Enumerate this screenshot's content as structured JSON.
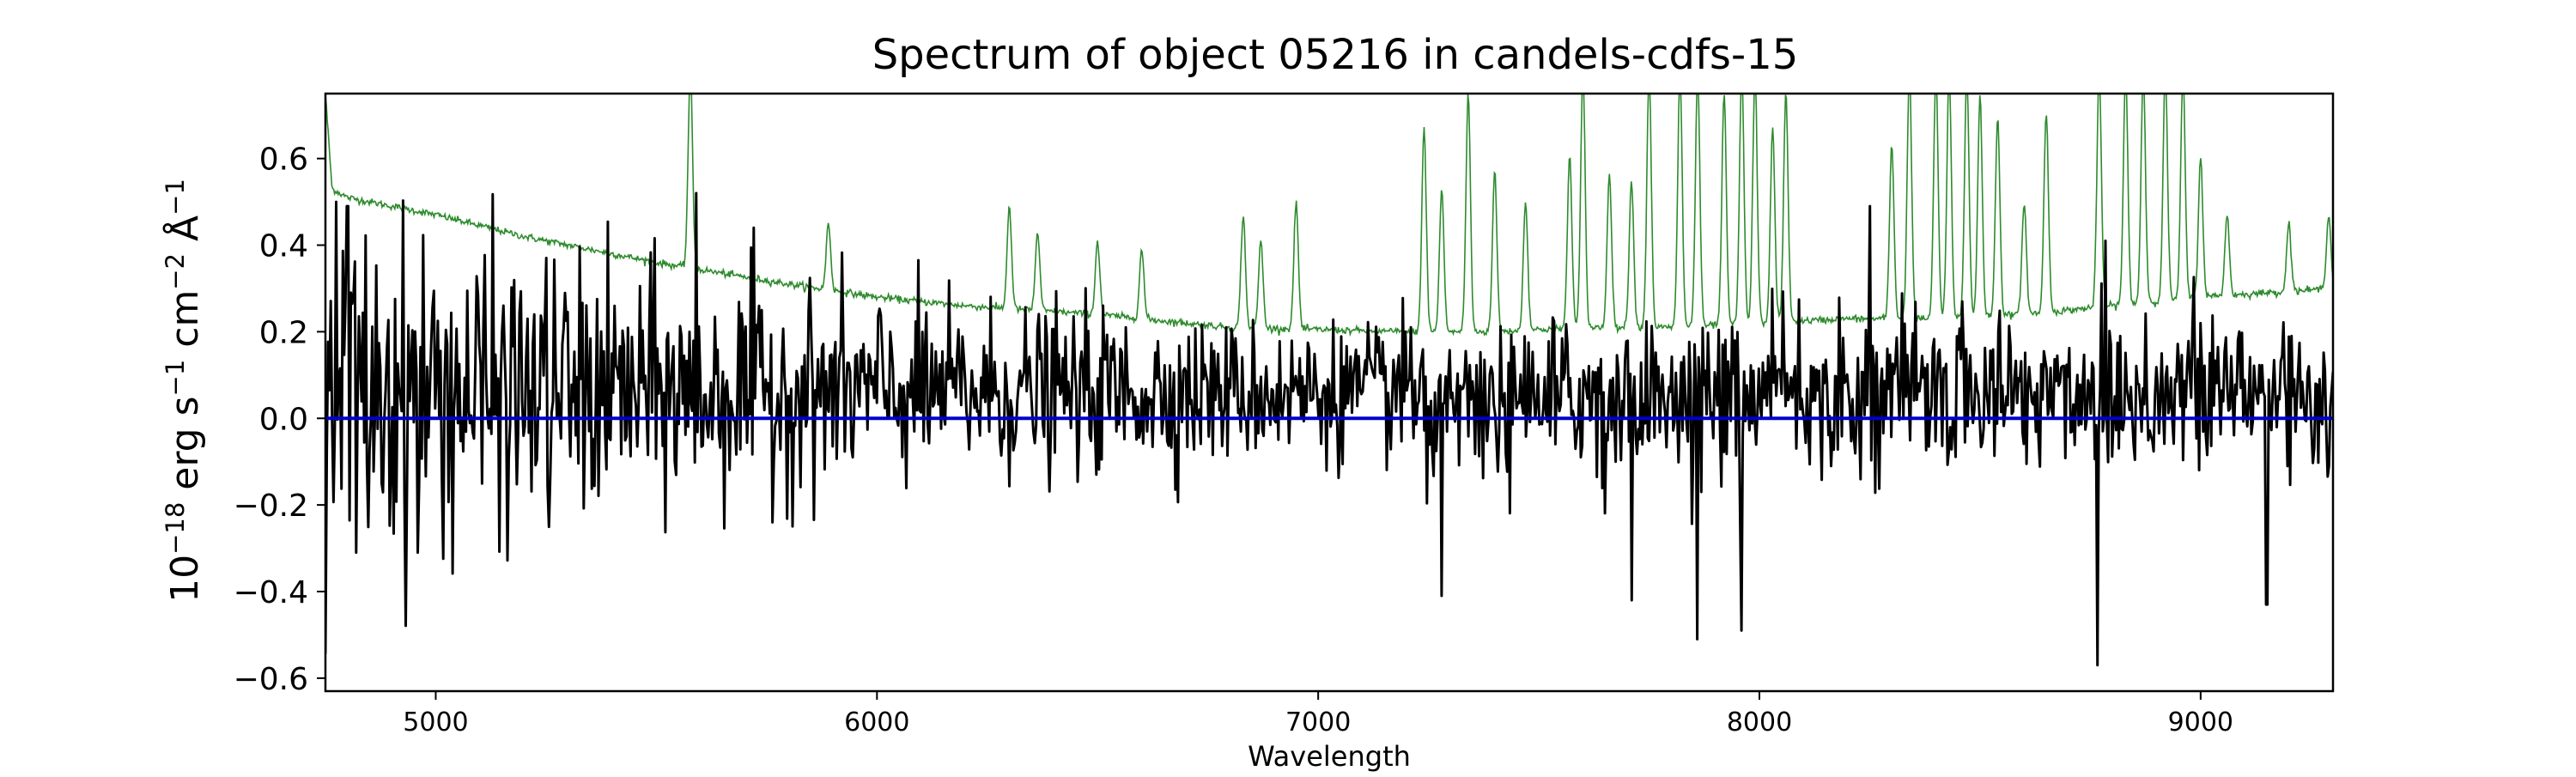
{
  "chart_data": {
    "type": "line",
    "title": "Spectrum of object 05216 in candels-cdfs-15",
    "xlabel": "Wavelength",
    "ylabel": {
      "prefix": "10",
      "exp1": "−18",
      "mid1": " erg s",
      "exp2": "−1",
      "mid2": " cm",
      "exp3": "−2",
      "mid3": " Å",
      "exp4": "−1"
    },
    "xlim": [
      4750,
      9300
    ],
    "ylim": [
      -0.63,
      0.75
    ],
    "xticks": [
      5000,
      6000,
      7000,
      8000,
      9000
    ],
    "xtick_labels": [
      "5000",
      "6000",
      "7000",
      "8000",
      "9000"
    ],
    "yticks": [
      -0.6,
      -0.4,
      -0.2,
      0.0,
      0.2,
      0.4,
      0.6
    ],
    "ytick_labels": [
      "−0.6",
      "−0.4",
      "−0.2",
      "0.0",
      "0.2",
      "0.4",
      "0.6"
    ],
    "grid": false,
    "series": [
      {
        "role": "error",
        "color": "#2e8b2e",
        "continuum": [
          [
            4750,
            0.75
          ],
          [
            4765,
            0.53
          ],
          [
            4800,
            0.51
          ],
          [
            5000,
            0.47
          ],
          [
            5200,
            0.42
          ],
          [
            5500,
            0.36
          ],
          [
            5800,
            0.31
          ],
          [
            6000,
            0.28
          ],
          [
            6200,
            0.26
          ],
          [
            6500,
            0.24
          ],
          [
            6800,
            0.21
          ],
          [
            7000,
            0.205
          ],
          [
            7200,
            0.2
          ],
          [
            7400,
            0.2
          ],
          [
            7600,
            0.21
          ],
          [
            7800,
            0.21
          ],
          [
            8000,
            0.22
          ],
          [
            8200,
            0.23
          ],
          [
            8400,
            0.23
          ],
          [
            8600,
            0.24
          ],
          [
            8800,
            0.26
          ],
          [
            9000,
            0.28
          ],
          [
            9300,
            0.3
          ]
        ],
        "peaks": [
          [
            5577,
            0.75
          ],
          [
            5890,
            0.4
          ],
          [
            6300,
            0.44
          ],
          [
            6364,
            0.38
          ],
          [
            6500,
            0.36
          ],
          [
            6600,
            0.34
          ],
          [
            6830,
            0.42
          ],
          [
            6870,
            0.36
          ],
          [
            6950,
            0.45
          ],
          [
            7240,
            0.62
          ],
          [
            7280,
            0.48
          ],
          [
            7340,
            0.7
          ],
          [
            7400,
            0.52
          ],
          [
            7470,
            0.45
          ],
          [
            7570,
            0.56
          ],
          [
            7600,
            0.75
          ],
          [
            7660,
            0.52
          ],
          [
            7710,
            0.5
          ],
          [
            7750,
            0.75
          ],
          [
            7820,
            0.75
          ],
          [
            7860,
            0.75
          ],
          [
            7920,
            0.7
          ],
          [
            7960,
            0.75
          ],
          [
            7990,
            0.75
          ],
          [
            8030,
            0.62
          ],
          [
            8060,
            0.7
          ],
          [
            8300,
            0.58
          ],
          [
            8340,
            0.75
          ],
          [
            8400,
            0.75
          ],
          [
            8430,
            0.75
          ],
          [
            8470,
            0.75
          ],
          [
            8500,
            0.7
          ],
          [
            8540,
            0.65
          ],
          [
            8600,
            0.45
          ],
          [
            8650,
            0.66
          ],
          [
            8770,
            0.75
          ],
          [
            8830,
            0.75
          ],
          [
            8870,
            0.75
          ],
          [
            8920,
            0.75
          ],
          [
            8960,
            0.75
          ],
          [
            9000,
            0.55
          ],
          [
            9060,
            0.42
          ],
          [
            9200,
            0.4
          ],
          [
            9290,
            0.42
          ]
        ]
      },
      {
        "role": "flux",
        "color": "#000000",
        "n_points": 1500,
        "extrema": [
          [
            4800,
            0.49
          ],
          [
            4820,
            -0.31
          ],
          [
            4960,
            -0.31
          ],
          [
            5590,
            0.52
          ],
          [
            5720,
            0.44
          ],
          [
            7280,
            -0.41
          ],
          [
            7710,
            -0.42
          ],
          [
            7860,
            -0.51
          ],
          [
            7960,
            -0.49
          ],
          [
            8250,
            0.49
          ],
          [
            8765,
            -0.57
          ],
          [
            8785,
            0.41
          ],
          [
            9150,
            -0.43
          ]
        ]
      },
      {
        "role": "zero",
        "color": "#0000cc",
        "x": [
          4750,
          9300
        ],
        "y": [
          0,
          0
        ]
      }
    ]
  }
}
